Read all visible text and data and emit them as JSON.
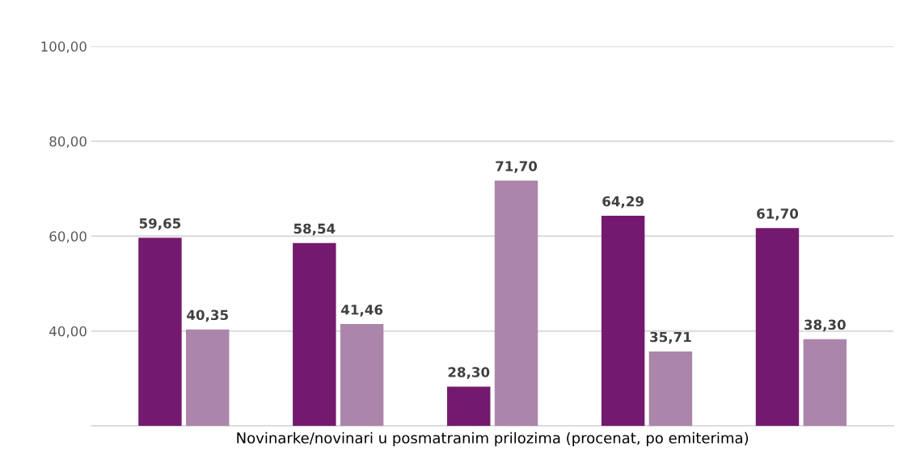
{
  "chart_data": {
    "type": "bar",
    "xlabel": "Novinarke/novinari u posmatranim prilozima (procenat, po emiterima)",
    "categories": [
      null,
      null,
      null,
      null,
      null
    ],
    "series": [
      {
        "color": "#741a6e",
        "values": [
          59.65,
          58.54,
          28.3,
          64.29,
          61.7
        ],
        "value_labels": [
          "59,65",
          "58,54",
          "28,30",
          "64,29",
          "61,70"
        ]
      },
      {
        "color": "#ab86aa",
        "values": [
          40.35,
          41.46,
          71.7,
          35.71,
          38.3
        ],
        "value_labels": [
          "40,35",
          "41,46",
          "71,70",
          "35,71",
          "38,30"
        ]
      }
    ],
    "ylim": [
      20,
      100
    ],
    "yticks": [
      {
        "value": 20,
        "label": null
      },
      {
        "value": 40,
        "label": "40,00"
      },
      {
        "value": 60,
        "label": "60,00"
      },
      {
        "value": 80,
        "label": "80,00"
      },
      {
        "value": 100,
        "label": "100,00"
      }
    ],
    "grid": "y"
  }
}
